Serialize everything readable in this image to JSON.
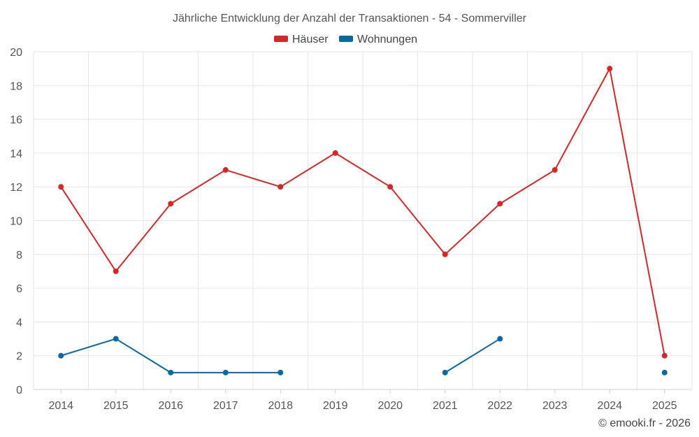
{
  "chart_data": {
    "type": "line",
    "title": "Jährliche Entwicklung der Anzahl der Transaktionen - 54 - Sommerviller",
    "categories": [
      "2014",
      "2015",
      "2016",
      "2017",
      "2018",
      "2019",
      "2020",
      "2021",
      "2022",
      "2023",
      "2024",
      "2025"
    ],
    "ylim": [
      0,
      20
    ],
    "yticks": [
      0,
      2,
      4,
      6,
      8,
      10,
      12,
      14,
      16,
      18,
      20
    ],
    "grid": true,
    "legend_position": "top-center",
    "series": [
      {
        "name": "Häuser",
        "color": "#d62728",
        "values": [
          12,
          7,
          11,
          13,
          12,
          14,
          12,
          8,
          11,
          13,
          19,
          2
        ]
      },
      {
        "name": "Wohnungen",
        "color": "#0868a0",
        "values": [
          2,
          3,
          1,
          1,
          1,
          null,
          null,
          1,
          3,
          null,
          null,
          1
        ]
      }
    ],
    "credit": "© emooki.fr - 2026"
  }
}
